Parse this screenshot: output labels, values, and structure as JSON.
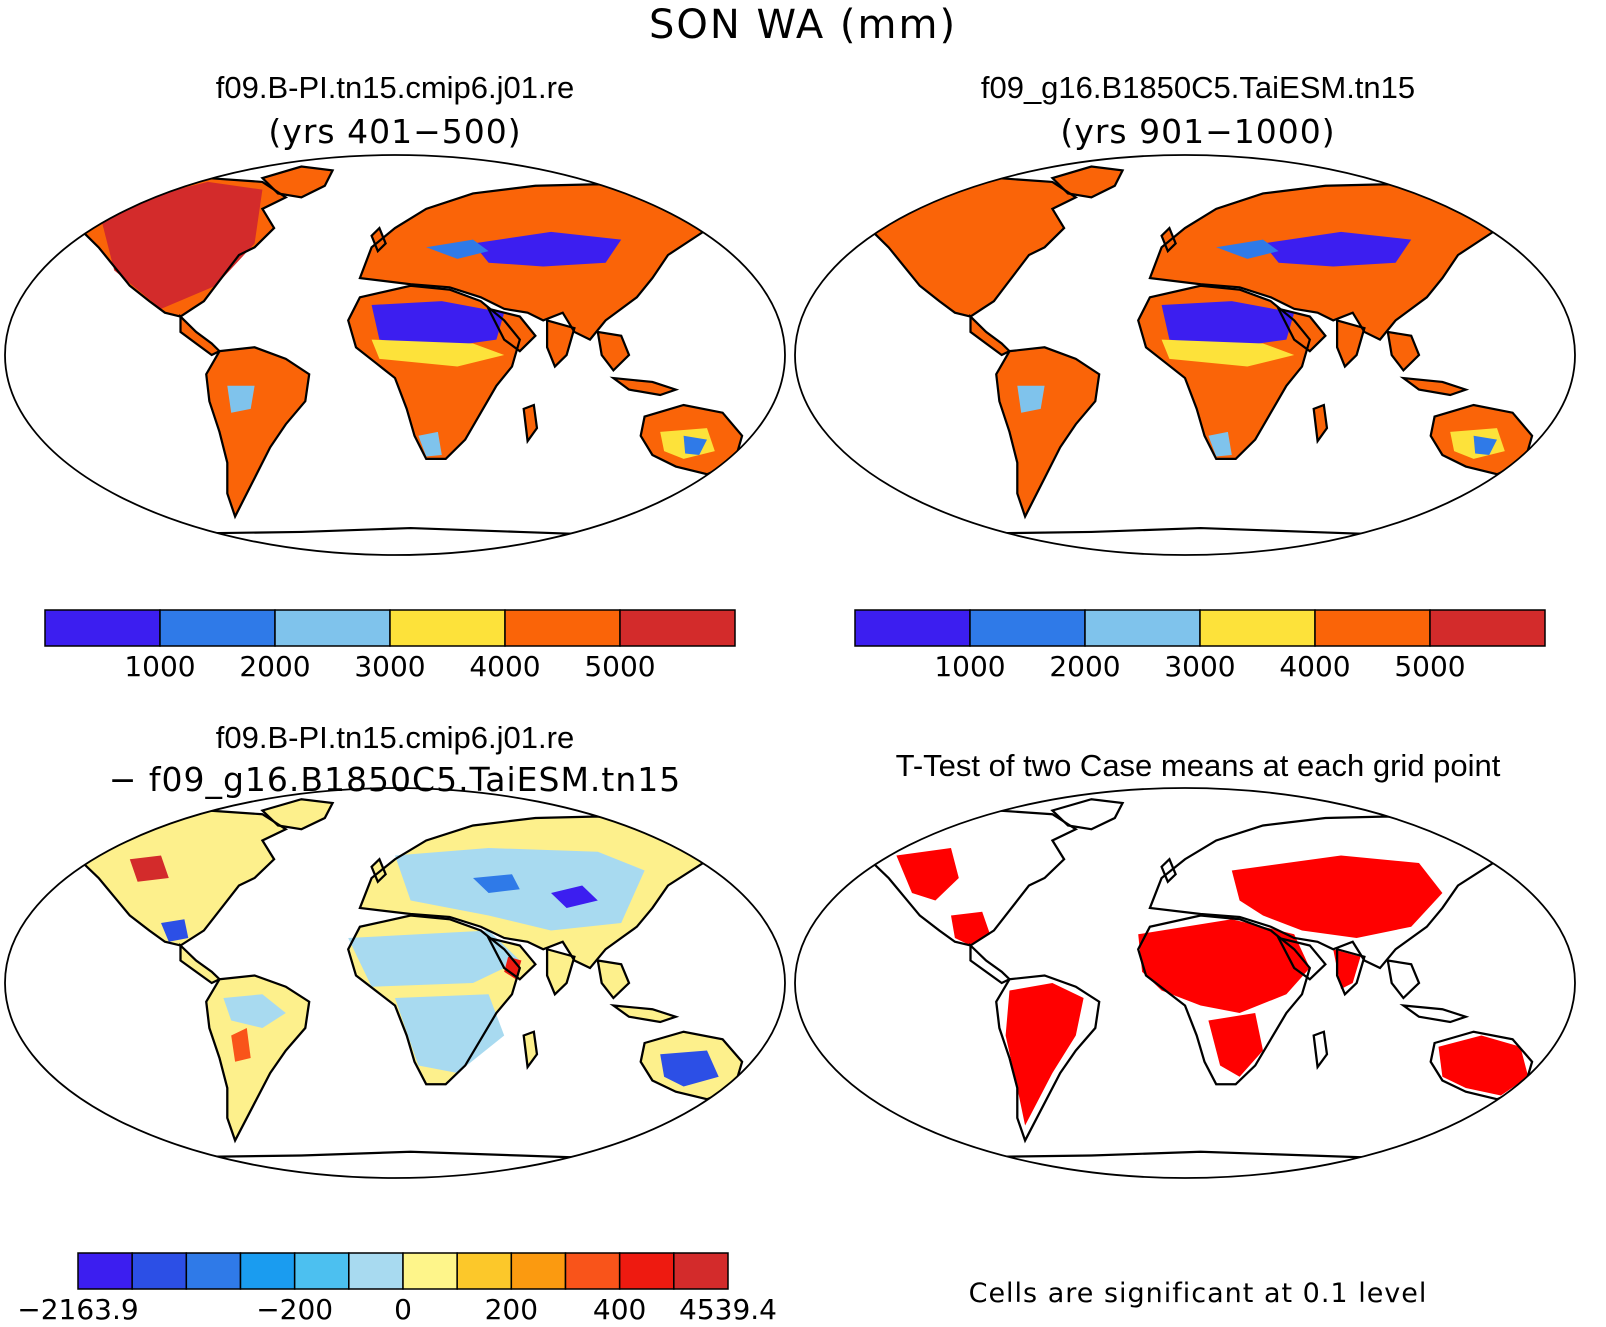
{
  "figure": {
    "title": "SON WA (mm)"
  },
  "panels": [
    {
      "title": "f09.B-PI.tn15.cmip6.j01.re",
      "subtitle": "(yrs 401−500)"
    },
    {
      "title": "f09_g16.B1850C5.TaiESM.tn15",
      "subtitle": "(yrs 901−1000)"
    },
    {
      "title": "f09.B-PI.tn15.cmip6.j01.re",
      "subtitle": "− f09_g16.B1850C5.TaiESM.tn15"
    },
    {
      "title": "T-Test of two Case means at each grid point",
      "subtitle": ""
    }
  ],
  "colorbar_abs": {
    "colors": [
      "#3c1ef0",
      "#2f7ae8",
      "#7fc3ec",
      "#fde23a",
      "#fa6408",
      "#d32b2b"
    ],
    "labels": [
      "1000",
      "2000",
      "3000",
      "4000",
      "5000"
    ]
  },
  "colorbar_diff": {
    "colors": [
      "#3c1ef0",
      "#2c4fe6",
      "#2f7ae8",
      "#1a9cf0",
      "#4cc0f0",
      "#a8daf0",
      "#fef58a",
      "#fcc82a",
      "#fb9a10",
      "#f9541a",
      "#ee1a10",
      "#d32b2b"
    ],
    "labels": [
      {
        "text": "−2163.9",
        "at": 0
      },
      {
        "text": "−200",
        "at": 4
      },
      {
        "text": "0",
        "at": 6
      },
      {
        "text": "200",
        "at": 8
      },
      {
        "text": "400",
        "at": 10
      },
      {
        "text": "4539.4",
        "at": 12
      }
    ]
  },
  "significance_note": "Cells are significant at 0.1 level",
  "colors": {
    "significant": "#ff0000",
    "land_abs": "#fa6408",
    "land_diff": "#fdf08c"
  }
}
